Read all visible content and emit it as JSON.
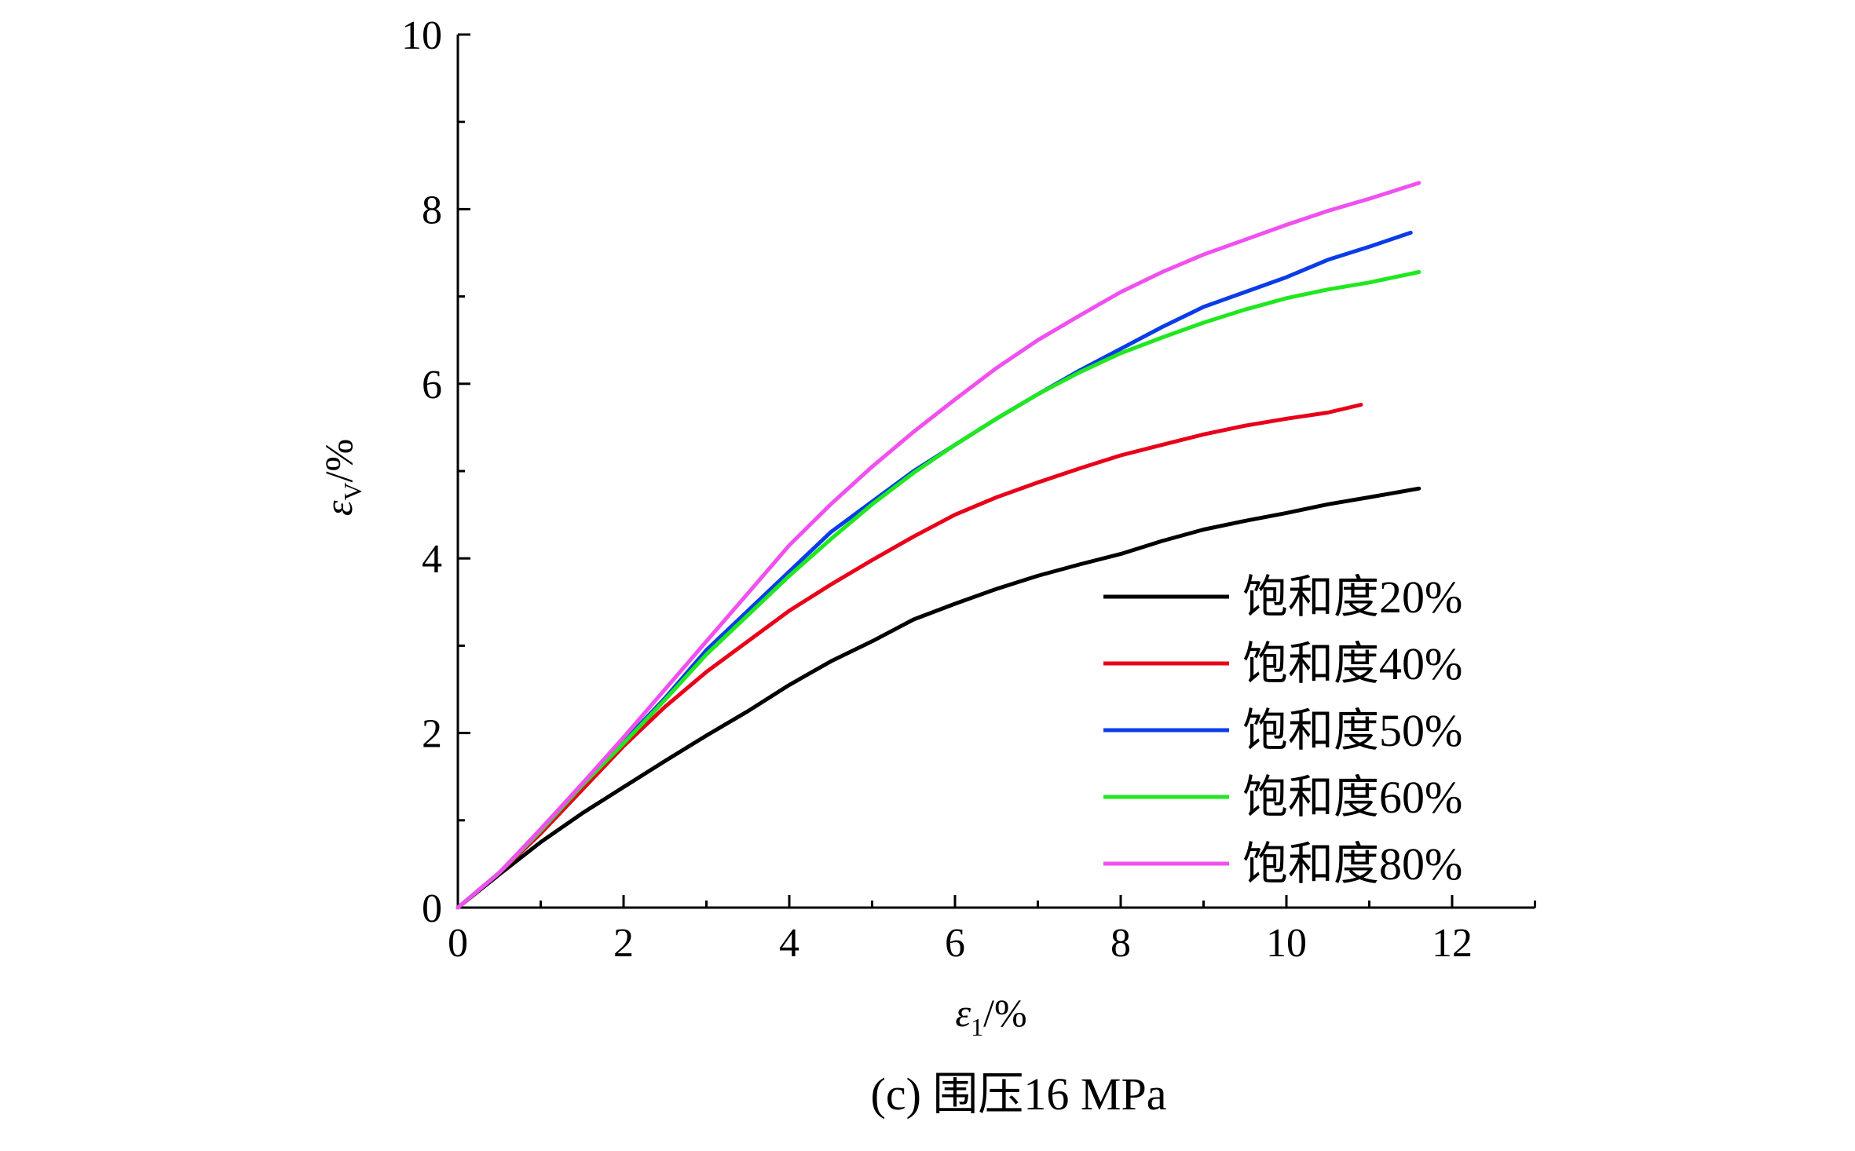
{
  "chart_data": {
    "type": "line",
    "xlabel": {
      "symbol": "ε",
      "sub": "1",
      "unit": "/%"
    },
    "ylabel": {
      "symbol": "ε",
      "sub": "V",
      "unit": "/%"
    },
    "xlim": [
      0,
      13
    ],
    "ylim": [
      0,
      10
    ],
    "xticks": [
      0,
      2,
      4,
      6,
      8,
      10,
      12
    ],
    "yticks": [
      0,
      2,
      4,
      6,
      8,
      10
    ],
    "grid": false,
    "legend_position": "bottom-right",
    "caption": "(c) 围压16 MPa",
    "series": [
      {
        "name": "饱和度20%",
        "color": "#000000",
        "points": [
          [
            0,
            0
          ],
          [
            0.5,
            0.38
          ],
          [
            1,
            0.75
          ],
          [
            1.5,
            1.08
          ],
          [
            2,
            1.38
          ],
          [
            2.5,
            1.68
          ],
          [
            3,
            1.97
          ],
          [
            3.5,
            2.25
          ],
          [
            4,
            2.55
          ],
          [
            4.5,
            2.82
          ],
          [
            5,
            3.05
          ],
          [
            5.5,
            3.3
          ],
          [
            6,
            3.48
          ],
          [
            6.5,
            3.65
          ],
          [
            7,
            3.8
          ],
          [
            7.5,
            3.93
          ],
          [
            8,
            4.05
          ],
          [
            8.5,
            4.2
          ],
          [
            9,
            4.33
          ],
          [
            9.5,
            4.43
          ],
          [
            10,
            4.52
          ],
          [
            10.5,
            4.62
          ],
          [
            11,
            4.7
          ],
          [
            11.6,
            4.8
          ]
        ]
      },
      {
        "name": "饱和度40%",
        "color": "#e8001a",
        "points": [
          [
            0,
            0
          ],
          [
            0.5,
            0.4
          ],
          [
            1,
            0.85
          ],
          [
            1.5,
            1.35
          ],
          [
            2,
            1.85
          ],
          [
            2.5,
            2.3
          ],
          [
            3,
            2.7
          ],
          [
            3.5,
            3.05
          ],
          [
            4,
            3.4
          ],
          [
            4.5,
            3.7
          ],
          [
            5,
            3.98
          ],
          [
            5.5,
            4.25
          ],
          [
            6,
            4.5
          ],
          [
            6.5,
            4.7
          ],
          [
            7,
            4.87
          ],
          [
            7.5,
            5.03
          ],
          [
            8,
            5.18
          ],
          [
            8.5,
            5.3
          ],
          [
            9,
            5.42
          ],
          [
            9.5,
            5.52
          ],
          [
            10,
            5.6
          ],
          [
            10.5,
            5.67
          ],
          [
            10.9,
            5.76
          ]
        ]
      },
      {
        "name": "饱和度50%",
        "color": "#0a3ce8",
        "points": [
          [
            0,
            0
          ],
          [
            0.5,
            0.4
          ],
          [
            1,
            0.88
          ],
          [
            1.5,
            1.4
          ],
          [
            2,
            1.9
          ],
          [
            2.5,
            2.4
          ],
          [
            3,
            2.95
          ],
          [
            3.5,
            3.4
          ],
          [
            4,
            3.85
          ],
          [
            4.5,
            4.3
          ],
          [
            5,
            4.65
          ],
          [
            5.5,
            5.0
          ],
          [
            6,
            5.3
          ],
          [
            6.5,
            5.6
          ],
          [
            7,
            5.88
          ],
          [
            7.5,
            6.15
          ],
          [
            8,
            6.4
          ],
          [
            8.5,
            6.65
          ],
          [
            9,
            6.88
          ],
          [
            9.5,
            7.05
          ],
          [
            10,
            7.22
          ],
          [
            10.5,
            7.42
          ],
          [
            11,
            7.57
          ],
          [
            11.5,
            7.73
          ]
        ]
      },
      {
        "name": "饱和度60%",
        "color": "#1fe81f",
        "points": [
          [
            0,
            0
          ],
          [
            0.5,
            0.4
          ],
          [
            1,
            0.88
          ],
          [
            1.5,
            1.4
          ],
          [
            2,
            1.88
          ],
          [
            2.5,
            2.38
          ],
          [
            3,
            2.9
          ],
          [
            3.5,
            3.35
          ],
          [
            4,
            3.8
          ],
          [
            4.5,
            4.22
          ],
          [
            5,
            4.62
          ],
          [
            5.5,
            4.98
          ],
          [
            6,
            5.3
          ],
          [
            6.5,
            5.6
          ],
          [
            7,
            5.88
          ],
          [
            7.5,
            6.13
          ],
          [
            8,
            6.35
          ],
          [
            8.5,
            6.53
          ],
          [
            9,
            6.7
          ],
          [
            9.5,
            6.85
          ],
          [
            10,
            6.98
          ],
          [
            10.5,
            7.08
          ],
          [
            11,
            7.16
          ],
          [
            11.6,
            7.28
          ]
        ]
      },
      {
        "name": "饱和度80%",
        "color": "#f050f0",
        "points": [
          [
            0,
            0
          ],
          [
            0.5,
            0.4
          ],
          [
            1,
            0.9
          ],
          [
            1.5,
            1.42
          ],
          [
            2,
            1.95
          ],
          [
            2.5,
            2.5
          ],
          [
            3,
            3.05
          ],
          [
            3.5,
            3.6
          ],
          [
            4,
            4.15
          ],
          [
            4.5,
            4.62
          ],
          [
            5,
            5.05
          ],
          [
            5.5,
            5.45
          ],
          [
            6,
            5.82
          ],
          [
            6.5,
            6.18
          ],
          [
            7,
            6.5
          ],
          [
            7.5,
            6.78
          ],
          [
            8,
            7.05
          ],
          [
            8.5,
            7.28
          ],
          [
            9,
            7.48
          ],
          [
            9.5,
            7.65
          ],
          [
            10,
            7.82
          ],
          [
            10.5,
            7.98
          ],
          [
            11,
            8.12
          ],
          [
            11.6,
            8.3
          ]
        ]
      }
    ]
  }
}
